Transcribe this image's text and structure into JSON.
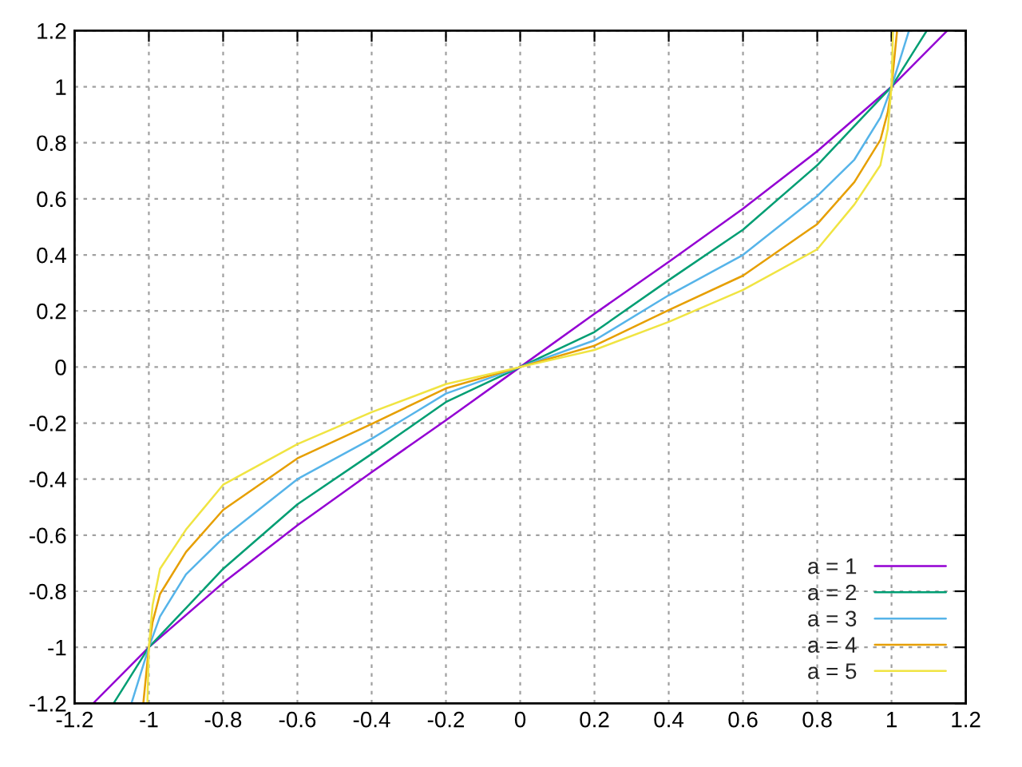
{
  "chart_data": {
    "type": "line",
    "series": [
      {
        "name": "a = 1",
        "color": "#9400d3",
        "x": [
          -1.15,
          -1.0,
          -0.8,
          -0.6,
          -0.4,
          -0.2,
          0,
          0.2,
          0.4,
          0.6,
          0.8,
          1.0,
          1.15
        ],
        "values": [
          -1.2,
          -1.0,
          -0.77,
          -0.565,
          -0.375,
          -0.19,
          0,
          0.19,
          0.375,
          0.565,
          0.77,
          1.0,
          1.2
        ]
      },
      {
        "name": "a = 2",
        "color": "#009e73",
        "x": [
          -1.095,
          -1.0,
          -0.9,
          -0.8,
          -0.6,
          -0.4,
          -0.2,
          0,
          0.2,
          0.4,
          0.6,
          0.8,
          0.9,
          1.0,
          1.095
        ],
        "values": [
          -1.2,
          -1.0,
          -0.86,
          -0.72,
          -0.49,
          -0.31,
          -0.125,
          0,
          0.125,
          0.31,
          0.49,
          0.72,
          0.86,
          1.0,
          1.2
        ]
      },
      {
        "name": "a = 3",
        "color": "#56b4e9",
        "x": [
          -1.047,
          -1.0,
          -0.97,
          -0.9,
          -0.8,
          -0.6,
          -0.4,
          -0.2,
          0,
          0.2,
          0.4,
          0.6,
          0.8,
          0.9,
          0.97,
          1.0,
          1.047
        ],
        "values": [
          -1.2,
          -1.0,
          -0.89,
          -0.74,
          -0.61,
          -0.4,
          -0.256,
          -0.095,
          0,
          0.095,
          0.256,
          0.4,
          0.61,
          0.74,
          0.89,
          1.0,
          1.2
        ]
      },
      {
        "name": "a = 4",
        "color": "#e69f00",
        "x": [
          -1.015,
          -1.0,
          -0.99,
          -0.97,
          -0.9,
          -0.8,
          -0.6,
          -0.4,
          -0.2,
          0,
          0.2,
          0.4,
          0.6,
          0.8,
          0.9,
          0.97,
          0.99,
          1.0,
          1.015
        ],
        "values": [
          -1.2,
          -1.0,
          -0.91,
          -0.81,
          -0.66,
          -0.51,
          -0.326,
          -0.203,
          -0.076,
          0,
          0.076,
          0.203,
          0.326,
          0.51,
          0.66,
          0.81,
          0.91,
          1.0,
          1.2
        ]
      },
      {
        "name": "a = 5",
        "color": "#f0e442",
        "x": [
          -1.004,
          -1.0,
          -0.99,
          -0.97,
          -0.9,
          -0.8,
          -0.6,
          -0.4,
          -0.2,
          0,
          0.2,
          0.4,
          0.6,
          0.8,
          0.9,
          0.97,
          0.99,
          1.0,
          1.004
        ],
        "values": [
          -1.2,
          -1.0,
          -0.85,
          -0.72,
          -0.58,
          -0.42,
          -0.275,
          -0.161,
          -0.061,
          0,
          0.061,
          0.161,
          0.275,
          0.42,
          0.58,
          0.72,
          0.85,
          1.0,
          1.2
        ]
      }
    ],
    "xlim": [
      -1.2,
      1.2
    ],
    "ylim": [
      -1.2,
      1.2
    ],
    "xticks": [
      -1.2,
      -1,
      -0.8,
      -0.6,
      -0.4,
      -0.2,
      0,
      0.2,
      0.4,
      0.6,
      0.8,
      1,
      1.2
    ],
    "yticks": [
      -1.2,
      -1,
      -0.8,
      -0.6,
      -0.4,
      -0.2,
      0,
      0.2,
      0.4,
      0.6,
      0.8,
      1,
      1.2
    ],
    "grid": true,
    "legend": "bottom right",
    "marker": "none",
    "line_style": "solid"
  }
}
